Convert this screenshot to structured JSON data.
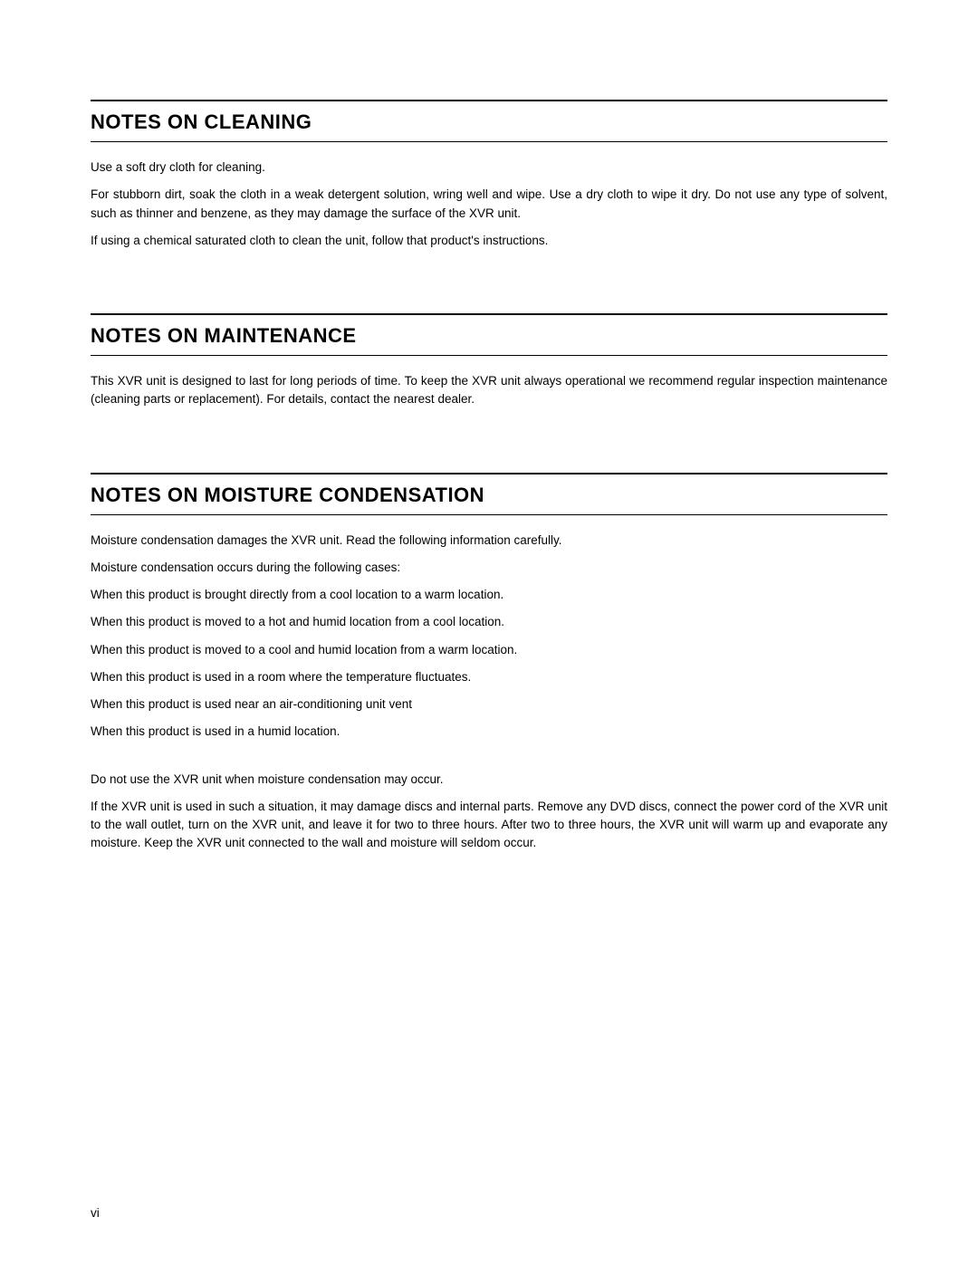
{
  "sections": [
    {
      "title": "NOTES ON CLEANING",
      "paragraphs": [
        {
          "text": "Use a soft dry cloth for cleaning.",
          "justify": false
        },
        {
          "text": "For stubborn dirt, soak the cloth in a weak detergent solution, wring well and wipe. Use a dry cloth to wipe it dry. Do not use any type of solvent, such as thinner and benzene, as they may damage the surface of the XVR unit.",
          "justify": true
        },
        {
          "text": "If using a chemical saturated cloth to clean the unit, follow that product's instructions.",
          "justify": false
        }
      ]
    },
    {
      "title": "NOTES ON MAINTENANCE",
      "paragraphs": [
        {
          "text": "This XVR unit is designed to last for long periods of time. To keep the XVR unit always operational we recommend regular inspection maintenance (cleaning parts or replacement). For details, contact the nearest dealer.",
          "justify": true
        }
      ]
    },
    {
      "title": "NOTES ON MOISTURE CONDENSATION",
      "paragraphs": [
        {
          "text": "Moisture condensation damages the XVR unit.  Read the following information carefully.",
          "justify": false
        },
        {
          "text": "Moisture condensation occurs during the following cases:",
          "justify": false
        },
        {
          "text": "When this product is brought directly from a cool location to a warm location.",
          "justify": false
        },
        {
          "text": "When this product is moved to a hot and humid location from a cool location.",
          "justify": false
        },
        {
          "text": "When this product is moved to a cool and humid location from a warm location.",
          "justify": false
        },
        {
          "text": "When this product is used in a room where the temperature fluctuates.",
          "justify": false
        },
        {
          "text": "When this product is used near an air-conditioning unit vent",
          "justify": false
        },
        {
          "text": "When this product is used in a humid location.",
          "justify": false
        },
        {
          "text": "",
          "justify": false,
          "spacer": true
        },
        {
          "text": "Do not use the XVR unit when moisture condensation may occur.",
          "justify": false
        },
        {
          "text": "If the XVR unit is used in such a situation, it may damage discs and internal parts. Remove any DVD discs, connect the power cord of the XVR unit to the wall outlet, turn on the XVR unit, and leave it for two to three hours. After two to three hours, the XVR unit will warm up and evaporate any moisture. Keep the XVR unit connected to the wall and moisture will seldom occur.",
          "justify": true
        }
      ]
    }
  ],
  "page_number": "vi"
}
